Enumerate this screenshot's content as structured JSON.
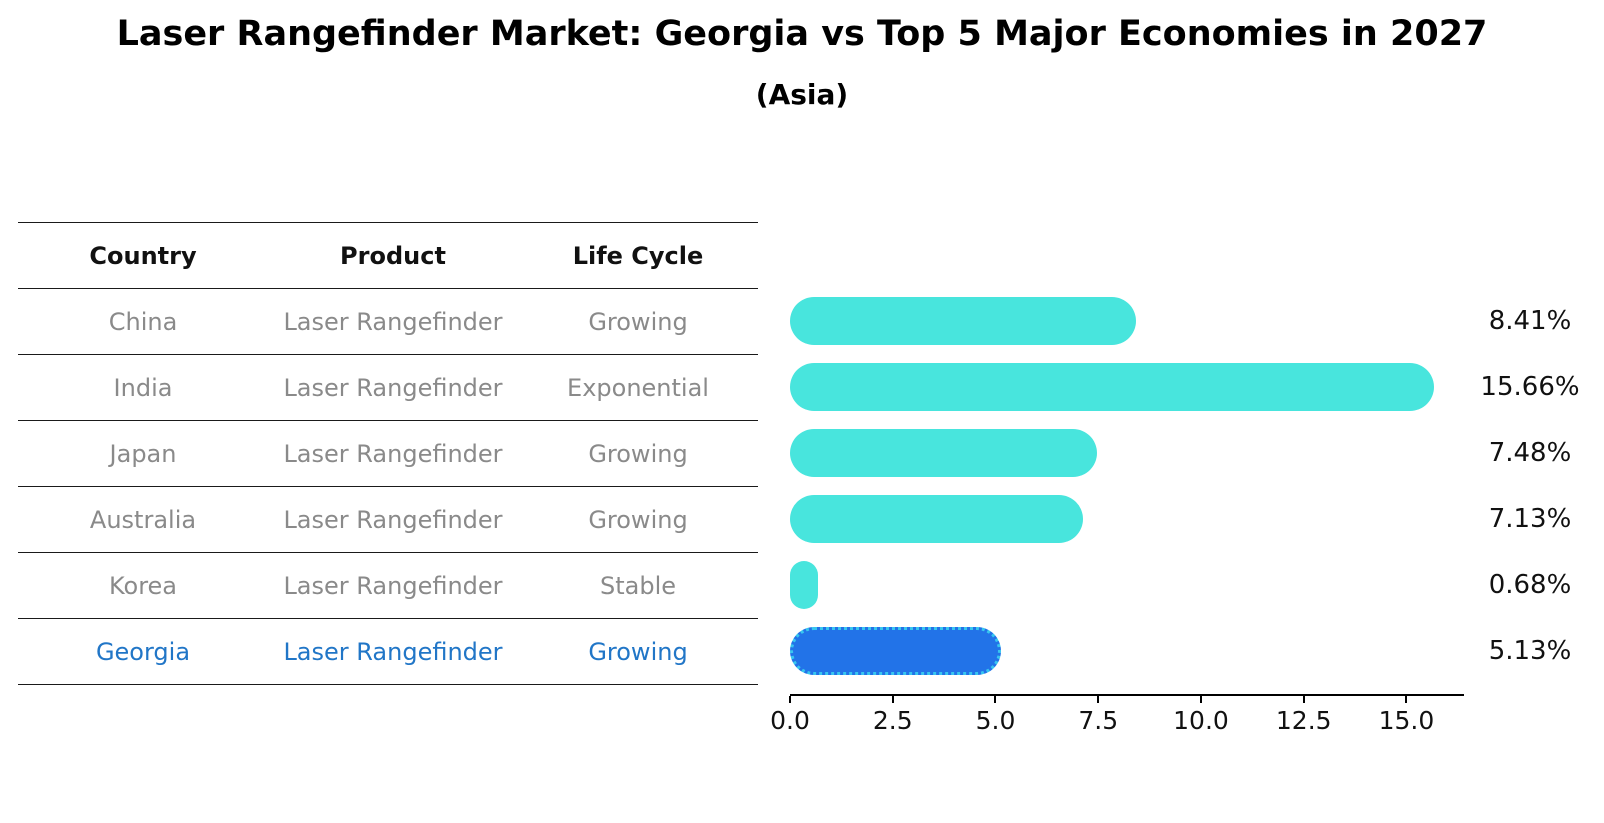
{
  "title": "Laser Rangefinder Market: Georgia vs Top 5 Major Economies in 2027",
  "subtitle": "(Asia)",
  "table": {
    "headers": [
      "Country",
      "Product",
      "Life Cycle"
    ],
    "rows": [
      {
        "country": "China",
        "product": "Laser Rangefinder",
        "life_cycle": "Growing",
        "highlight": false
      },
      {
        "country": "India",
        "product": "Laser Rangefinder",
        "life_cycle": "Exponential",
        "highlight": false
      },
      {
        "country": "Japan",
        "product": "Laser Rangefinder",
        "life_cycle": "Growing",
        "highlight": false
      },
      {
        "country": "Australia",
        "product": "Laser Rangefinder",
        "life_cycle": "Growing",
        "highlight": false
      },
      {
        "country": "Korea",
        "product": "Laser Rangefinder",
        "life_cycle": "Stable",
        "highlight": false
      },
      {
        "country": "Georgia",
        "product": "Laser Rangefinder",
        "life_cycle": "Growing",
        "highlight": true
      }
    ]
  },
  "chart_data": {
    "type": "bar",
    "orientation": "horizontal",
    "title": "Laser Rangefinder Market: Georgia vs Top 5 Major Economies in 2027",
    "subtitle": "(Asia)",
    "categories": [
      "China",
      "India",
      "Japan",
      "Australia",
      "Korea",
      "Georgia"
    ],
    "values": [
      8.41,
      15.66,
      7.48,
      7.13,
      0.68,
      5.13
    ],
    "value_labels": [
      "8.41%",
      "15.66%",
      "7.48%",
      "7.13%",
      "0.68%",
      "5.13%"
    ],
    "x_ticks": [
      "0.0",
      "2.5",
      "5.0",
      "7.5",
      "10.0",
      "12.5",
      "15.0"
    ],
    "xlim": [
      0,
      16.4
    ],
    "grid": false,
    "legend": "none",
    "highlight_index": 5
  },
  "colors": {
    "bar": "#48e5dd",
    "highlight_bar": "#2273e8",
    "highlight_border": "#38c6ef",
    "muted_text": "#8a8a8a",
    "accent_text": "#2176c7",
    "axis": "#000000"
  }
}
